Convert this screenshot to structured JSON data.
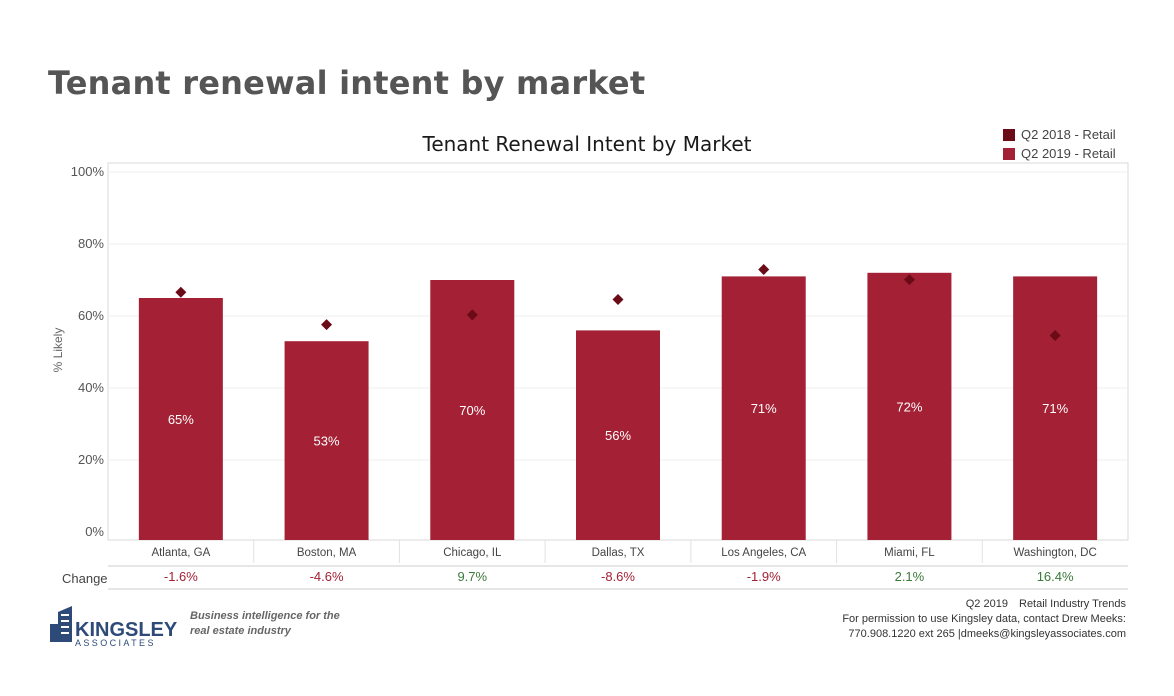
{
  "page": {
    "title": "Tenant renewal intent by market"
  },
  "legend": [
    {
      "label": "Q2 2018 - Retail",
      "color": "#6b0b17"
    },
    {
      "label": "Q2 2019 - Retail",
      "color": "#a32035"
    }
  ],
  "change_label": "Change",
  "changes": [
    {
      "value": "-1.6%",
      "color": "#a32035"
    },
    {
      "value": "-4.6%",
      "color": "#a32035"
    },
    {
      "value": "9.7%",
      "color": "#3a7a3a"
    },
    {
      "value": "-8.6%",
      "color": "#a32035"
    },
    {
      "value": "-1.9%",
      "color": "#a32035"
    },
    {
      "value": "2.1%",
      "color": "#3a7a3a"
    },
    {
      "value": "16.4%",
      "color": "#3a7a3a"
    }
  ],
  "footer": {
    "brand_name": "KINGSLEY",
    "brand_sub": "ASSOCIATES",
    "tagline_1": "Business intelligence for the",
    "tagline_2": "real estate industry",
    "period": "Q2 2019",
    "report": "Retail Industry Trends",
    "permission": "For permission to use Kingsley data, contact Drew Meeks:",
    "contact": "770.908.1220 ext 265 |dmeeks@kingsleyassociates.com"
  },
  "chart_data": {
    "type": "bar",
    "title": "Tenant Renewal Intent by Market",
    "ylabel": "% Likely",
    "ylim": [
      0,
      100
    ],
    "yticks": [
      "0%",
      "20%",
      "40%",
      "60%",
      "80%",
      "100%"
    ],
    "categories": [
      "Atlanta, GA",
      "Boston, MA",
      "Chicago, IL",
      "Dallas, TX",
      "Los Angeles, CA",
      "Miami, FL",
      "Washington, DC"
    ],
    "series": [
      {
        "name": "Q2 2019 - Retail",
        "mark": "bar",
        "color": "#a32035",
        "values": [
          65,
          53,
          70,
          56,
          71,
          72,
          71
        ],
        "labels": [
          "65%",
          "53%",
          "70%",
          "56%",
          "71%",
          "72%",
          "71%"
        ]
      },
      {
        "name": "Q2 2018 - Retail",
        "mark": "diamond",
        "color": "#6b0b17",
        "values": [
          66.6,
          57.6,
          60.3,
          64.6,
          72.9,
          70.1,
          54.6
        ]
      }
    ],
    "grid": true,
    "legend_position": "top-right"
  }
}
